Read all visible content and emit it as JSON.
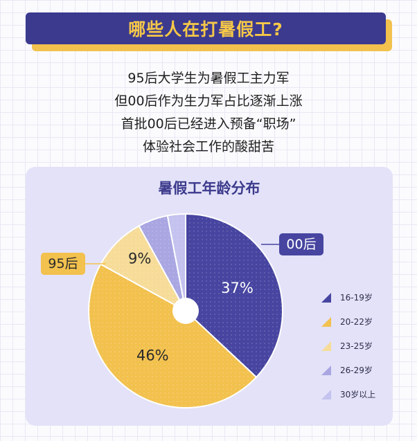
{
  "banner": {
    "title": "哪些人在打暑假工?"
  },
  "intro": {
    "lines": [
      "95后大学生为暑假工主力军",
      "但00后作为生力军占比逐渐上涨",
      "首批00后已经进入预备“职场”",
      "体验社会工作的酸甜苦"
    ]
  },
  "chart_data": {
    "type": "pie",
    "title": "暑假工年龄分布",
    "categories": [
      "16-19岁",
      "20-22岁",
      "23-25岁",
      "26-29岁",
      "30岁以上"
    ],
    "values": [
      37,
      46,
      9,
      5,
      3
    ],
    "value_labels": [
      "37%",
      "46%",
      "9%",
      "",
      ""
    ],
    "colors": [
      "#4745a0",
      "#f2c14e",
      "#f6dc98",
      "#a9a6e2",
      "#c4c2ee"
    ],
    "legend_position": "right",
    "annotations": [
      {
        "text": "00后",
        "refers_to": "16-19岁"
      },
      {
        "text": "95后",
        "refers_to": "20-22岁"
      }
    ]
  }
}
